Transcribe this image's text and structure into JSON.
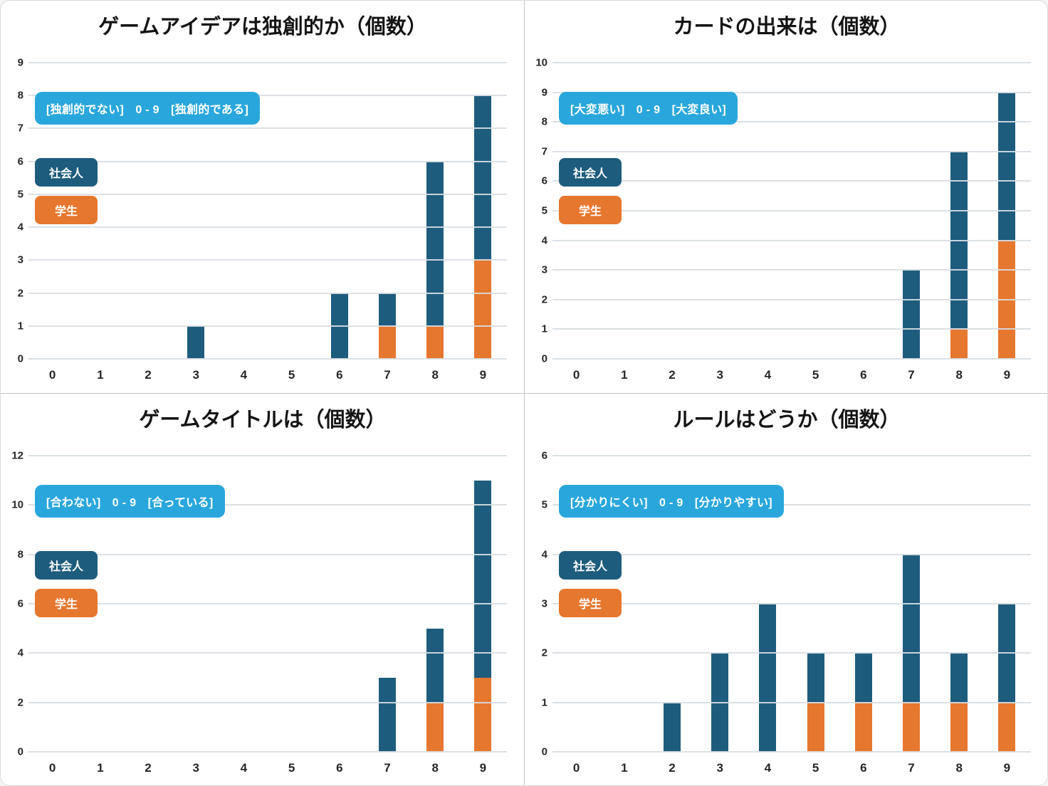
{
  "page": {
    "background": "#ffffff",
    "outer_border_color": "#d9d9d9",
    "divider_color": "#c4c4c4",
    "gridline_color": "#d8dde3",
    "accent_colors": {
      "series_adult": "#1e5c7d",
      "series_student": "#e6772e",
      "scale_badge": "#29a7dc"
    }
  },
  "chart_data": [
    {
      "type": "bar",
      "stacked": true,
      "title": "ゲームアイデアは独創的か（個数）",
      "scale_label": "[独創的でない]　0 - 9　[独創的である]",
      "categories": [
        "0",
        "1",
        "2",
        "3",
        "4",
        "5",
        "6",
        "7",
        "8",
        "9"
      ],
      "series": [
        {
          "name": "社会人",
          "color": "#1e5c7d",
          "values": [
            0,
            0,
            0,
            1,
            0,
            0,
            2,
            1,
            5,
            5
          ]
        },
        {
          "name": "学生",
          "color": "#e6772e",
          "values": [
            0,
            0,
            0,
            0,
            0,
            0,
            0,
            1,
            1,
            3
          ]
        }
      ],
      "ylim": [
        0,
        9
      ],
      "yticks": [
        0,
        1,
        2,
        3,
        4,
        5,
        6,
        7,
        8,
        9
      ],
      "xlabel": "",
      "ylabel": "",
      "grid": true,
      "legend_position": "inside-left"
    },
    {
      "type": "bar",
      "stacked": true,
      "title": "カードの出来は（個数）",
      "scale_label": "[大変悪い]　0 - 9　[大変良い]",
      "categories": [
        "0",
        "1",
        "2",
        "3",
        "4",
        "5",
        "6",
        "7",
        "8",
        "9"
      ],
      "series": [
        {
          "name": "社会人",
          "color": "#1e5c7d",
          "values": [
            0,
            0,
            0,
            0,
            0,
            0,
            0,
            3,
            6,
            5
          ]
        },
        {
          "name": "学生",
          "color": "#e6772e",
          "values": [
            0,
            0,
            0,
            0,
            0,
            0,
            0,
            0,
            1,
            4
          ]
        }
      ],
      "ylim": [
        0,
        10
      ],
      "yticks": [
        0,
        1,
        2,
        3,
        4,
        5,
        6,
        7,
        8,
        9,
        10
      ],
      "xlabel": "",
      "ylabel": "",
      "grid": true,
      "legend_position": "inside-left"
    },
    {
      "type": "bar",
      "stacked": true,
      "title": "ゲームタイトルは（個数）",
      "scale_label": "[合わない]　0 - 9　[合っている]",
      "categories": [
        "0",
        "1",
        "2",
        "3",
        "4",
        "5",
        "6",
        "7",
        "8",
        "9"
      ],
      "series": [
        {
          "name": "社会人",
          "color": "#1e5c7d",
          "values": [
            0,
            0,
            0,
            0,
            0,
            0,
            0,
            3,
            3,
            8
          ]
        },
        {
          "name": "学生",
          "color": "#e6772e",
          "values": [
            0,
            0,
            0,
            0,
            0,
            0,
            0,
            0,
            2,
            3
          ]
        }
      ],
      "ylim": [
        0,
        12
      ],
      "yticks": [
        0,
        2,
        4,
        6,
        8,
        10,
        12
      ],
      "xlabel": "",
      "ylabel": "",
      "grid": true,
      "legend_position": "inside-left"
    },
    {
      "type": "bar",
      "stacked": true,
      "title": "ルールはどうか（個数）",
      "scale_label": "[分かりにくい]　0 - 9　[分かりやすい]",
      "categories": [
        "0",
        "1",
        "2",
        "3",
        "4",
        "5",
        "6",
        "7",
        "8",
        "9"
      ],
      "series": [
        {
          "name": "社会人",
          "color": "#1e5c7d",
          "values": [
            0,
            0,
            1,
            2,
            3,
            1,
            1,
            3,
            1,
            2
          ]
        },
        {
          "name": "学生",
          "color": "#e6772e",
          "values": [
            0,
            0,
            0,
            0,
            0,
            1,
            1,
            1,
            1,
            1
          ]
        }
      ],
      "ylim": [
        0,
        6
      ],
      "yticks": [
        0,
        1,
        2,
        3,
        4,
        5,
        6
      ],
      "xlabel": "",
      "ylabel": "",
      "grid": true,
      "legend_position": "inside-left"
    }
  ]
}
